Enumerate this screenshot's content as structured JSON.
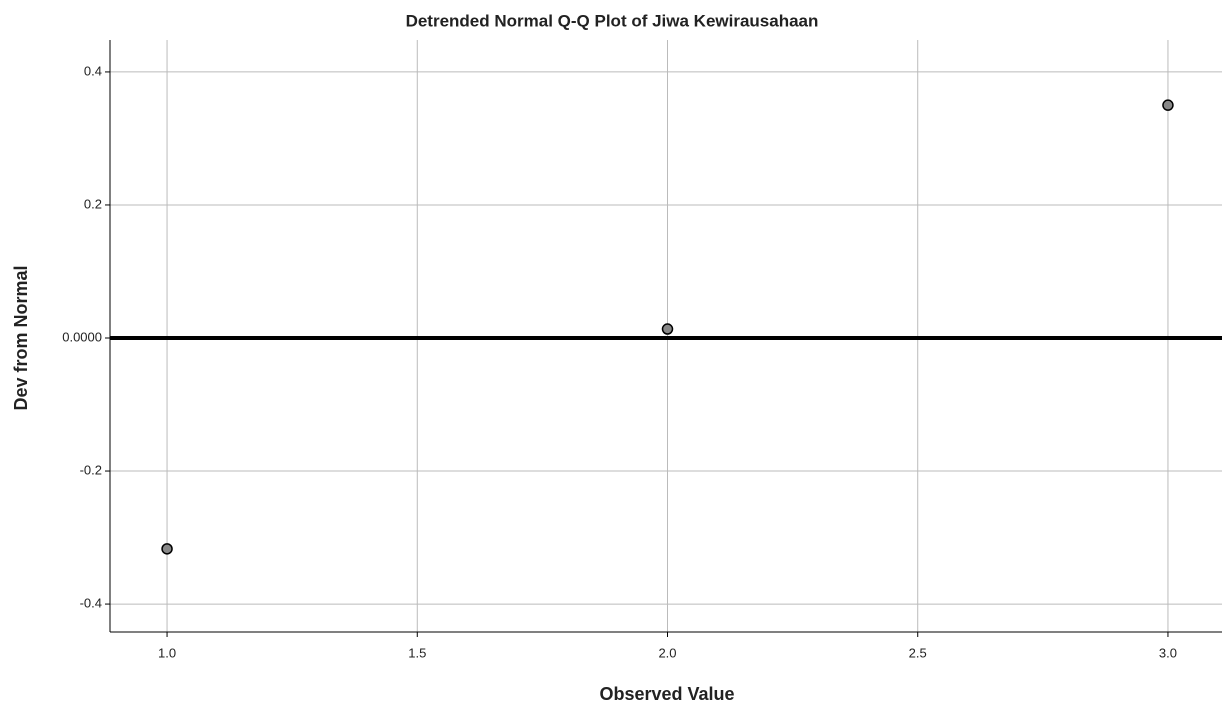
{
  "chart_data": {
    "type": "scatter",
    "title": "Detrended Normal Q-Q Plot of Jiwa Kewirausahaan",
    "x_label": "Observed Value",
    "y_label": "Dev from Normal",
    "x": [
      1.0,
      2.0,
      3.0
    ],
    "values": [
      -0.317,
      0.0135,
      0.35
    ],
    "color": "#888888",
    "xlim": [
      0.886,
      3.108
    ],
    "ylim": [
      -0.442,
      0.448
    ],
    "xticks": [
      {
        "value": 1,
        "label": "1.0"
      },
      1.5,
      {
        "value": 2,
        "label": "2.0"
      },
      2.5,
      {
        "value": 3,
        "label": "3.0"
      }
    ],
    "yticks": [
      -0.4,
      -0.2,
      {
        "value": 0,
        "label": "0.0000"
      },
      0.2,
      0.4
    ],
    "reference_line": 0,
    "grid": true
  }
}
